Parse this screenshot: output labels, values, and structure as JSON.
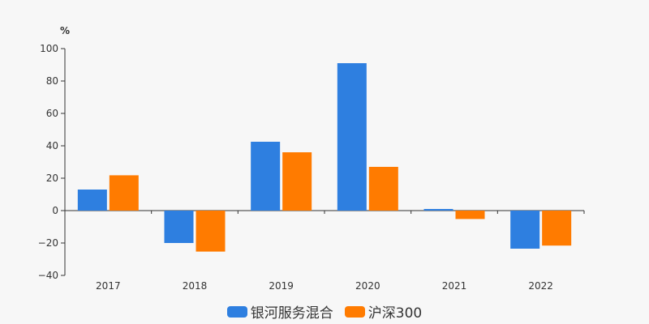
{
  "chart_data": {
    "type": "bar",
    "unit_label": "%",
    "categories": [
      "2017",
      "2018",
      "2019",
      "2020",
      "2021",
      "2022"
    ],
    "series": [
      {
        "name": "银河服务混合",
        "color": "#2e7fe0",
        "values": [
          13,
          -20,
          42.5,
          91,
          1,
          -23.5
        ]
      },
      {
        "name": "沪深300",
        "color": "#ff7b00",
        "values": [
          21.8,
          -25.3,
          36,
          27,
          -5.2,
          -21.6
        ]
      }
    ],
    "ylim": [
      -40,
      100
    ],
    "yticks": [
      "100",
      "80",
      "60",
      "40",
      "20",
      "0",
      "−20",
      "−40"
    ],
    "ytick_values": [
      100,
      80,
      60,
      40,
      20,
      0,
      -20,
      -40
    ],
    "grid": false,
    "legend_position": "bottom"
  }
}
